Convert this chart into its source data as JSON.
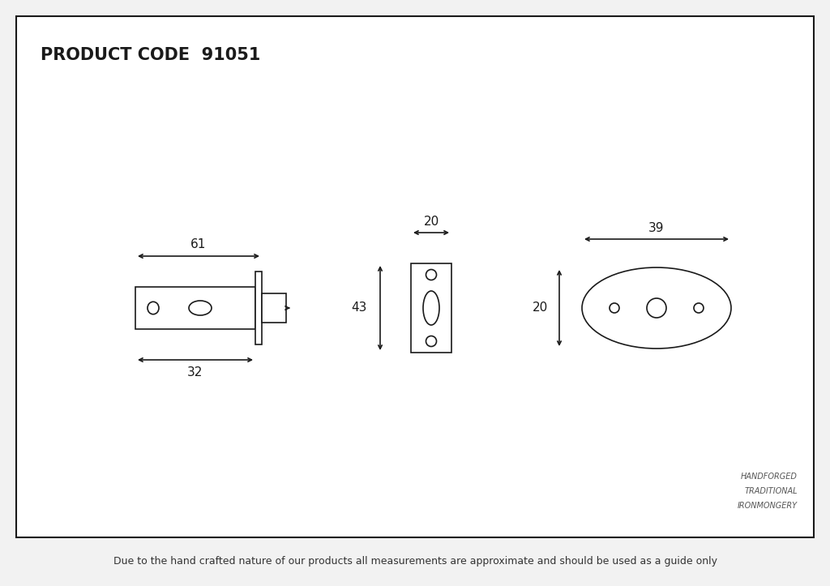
{
  "title": "PRODUCT CODE  91051",
  "footer": "Due to the hand crafted nature of our products all measurements are approximate and should be used as a guide only",
  "brand_line1": "HANDFORGED",
  "brand_line2": "TRADITIONAL",
  "brand_line3": "IRONMONGERY",
  "bg_color": "#f2f2f2",
  "drawing_bg": "#ffffff",
  "line_color": "#1a1a1a",
  "title_fontsize": 15,
  "dim_fontsize": 11,
  "brand_fontsize": 7,
  "footer_fontsize": 9
}
